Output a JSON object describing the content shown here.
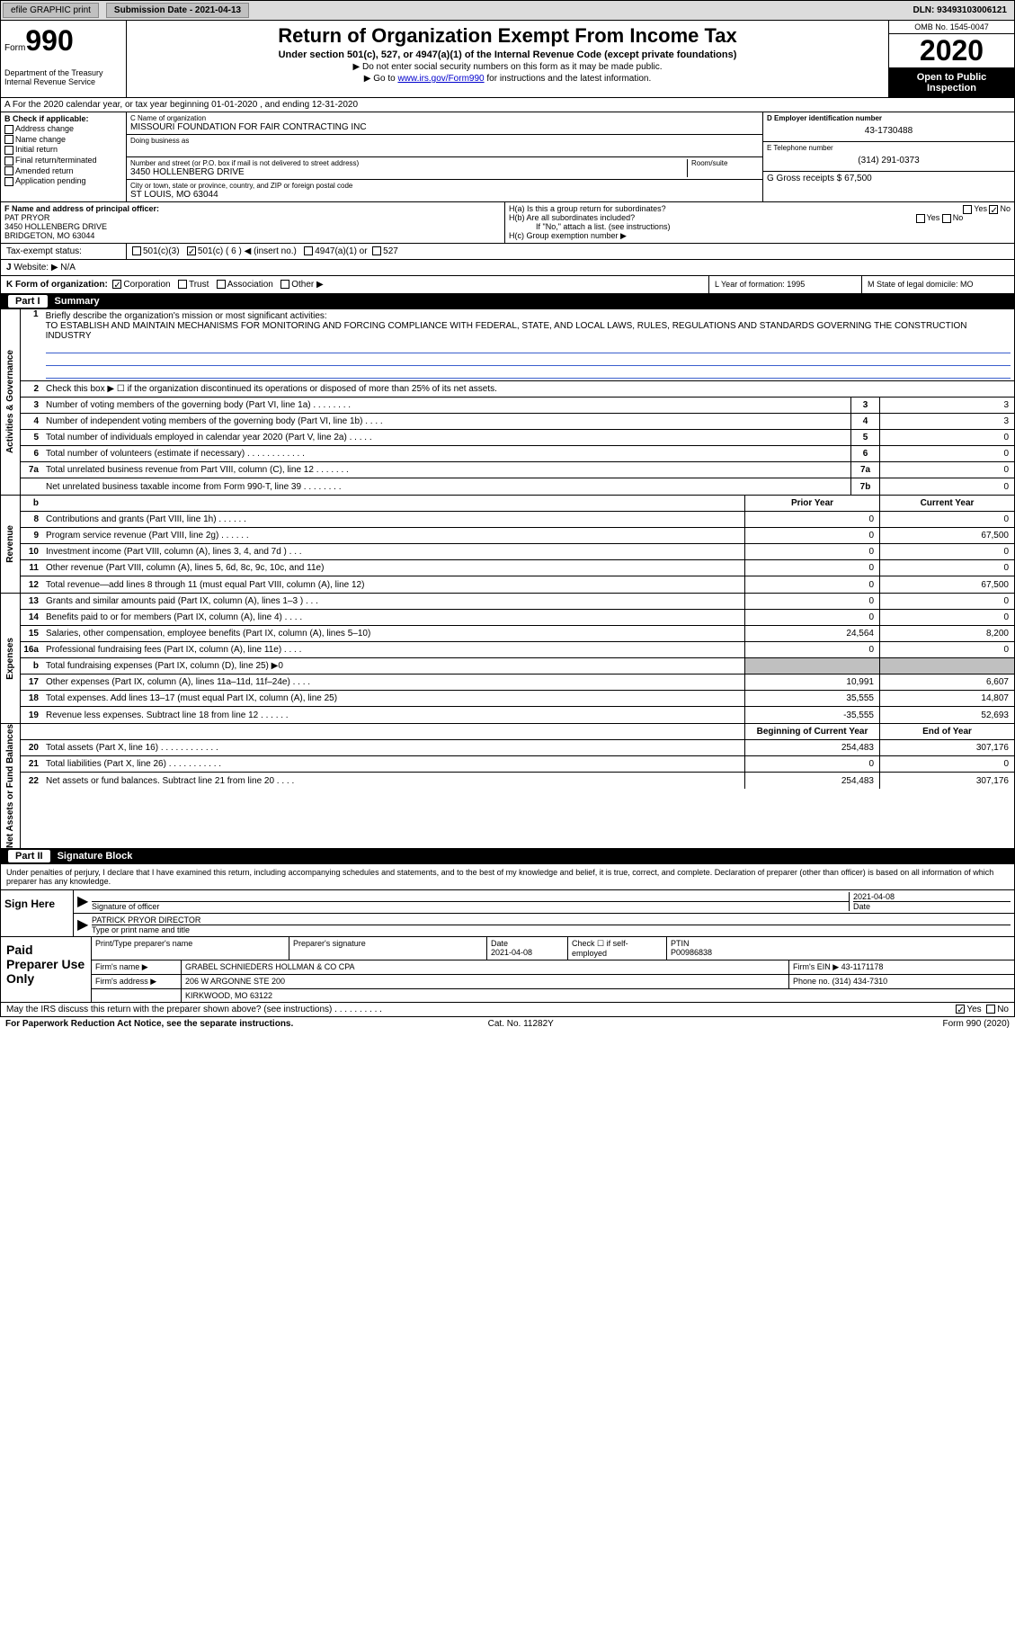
{
  "topbar": {
    "efile": "efile GRAPHIC print",
    "subdate_label": "Submission Date - 2021-04-13",
    "dln": "DLN: 93493103006121"
  },
  "header": {
    "form_label": "Form",
    "form_no": "990",
    "dept": "Department of the Treasury\nInternal Revenue Service",
    "title": "Return of Organization Exempt From Income Tax",
    "sub1": "Under section 501(c), 527, or 4947(a)(1) of the Internal Revenue Code (except private foundations)",
    "sub2": "▶ Do not enter social security numbers on this form as it may be made public.",
    "sub3_pre": "▶ Go to ",
    "sub3_link": "www.irs.gov/Form990",
    "sub3_post": " for instructions and the latest information.",
    "omb": "OMB No. 1545-0047",
    "year": "2020",
    "open": "Open to Public Inspection"
  },
  "row_a": "A For the 2020 calendar year, or tax year beginning 01-01-2020   , and ending 12-31-2020",
  "section_b": {
    "label": "B Check if applicable:",
    "items": [
      "Address change",
      "Name change",
      "Initial return",
      "Final return/terminated",
      "Amended return",
      "Application pending"
    ]
  },
  "section_c": {
    "name_lbl": "C Name of organization",
    "name": "MISSOURI FOUNDATION FOR FAIR CONTRACTING INC",
    "dba_lbl": "Doing business as",
    "addr_lbl": "Number and street (or P.O. box if mail is not delivered to street address)",
    "room_lbl": "Room/suite",
    "addr": "3450 HOLLENBERG DRIVE",
    "city_lbl": "City or town, state or province, country, and ZIP or foreign postal code",
    "city": "ST LOUIS, MO  63044"
  },
  "section_d": {
    "lbl": "D Employer identification number",
    "val": "43-1730488"
  },
  "section_e": {
    "lbl": "E Telephone number",
    "val": "(314) 291-0373"
  },
  "section_g": {
    "lbl": "G Gross receipts $ 67,500"
  },
  "section_f": {
    "lbl": "F  Name and address of principal officer:",
    "name": "PAT PRYOR",
    "addr": "3450 HOLLENBERG DRIVE\nBRIDGETON, MO  63044"
  },
  "section_h": {
    "a": "H(a)  Is this a group return for subordinates?",
    "a_ans_yes": "Yes",
    "a_ans_no": "No",
    "b": "H(b)  Are all subordinates included?",
    "b_note": "If \"No,\" attach a list. (see instructions)",
    "c": "H(c)  Group exemption number ▶"
  },
  "tax_status": {
    "lbl": "Tax-exempt status:",
    "o1": "501(c)(3)",
    "o2": "501(c) ( 6 ) ◀ (insert no.)",
    "o3": "4947(a)(1) or",
    "o4": "527"
  },
  "row_j": "Website: ▶  N/A",
  "row_k": {
    "k": "K Form of organization:",
    "corp": "Corporation",
    "trust": "Trust",
    "assoc": "Association",
    "other": "Other ▶",
    "l": "L Year of formation: 1995",
    "m": "M State of legal domicile: MO"
  },
  "part1": {
    "label": "Part I",
    "title": "Summary"
  },
  "summary": {
    "groups": [
      {
        "vlabel": "Activities & Governance",
        "rows": [
          {
            "num": "1",
            "type": "brief",
            "desc": "Briefly describe the organization's mission or most significant activities:",
            "text": "TO ESTABLISH AND MAINTAIN MECHANISMS FOR MONITORING AND FORCING COMPLIANCE WITH FEDERAL, STATE, AND LOCAL LAWS, RULES, REGULATIONS AND STANDARDS GOVERNING THE CONSTRUCTION INDUSTRY"
          },
          {
            "num": "2",
            "type": "text",
            "desc": "Check this box ▶ ☐  if the organization discontinued its operations or disposed of more than 25% of its net assets."
          },
          {
            "num": "3",
            "type": "box",
            "desc": "Number of voting members of the governing body (Part VI, line 1a)  .   .   .   .   .   .   .   .",
            "box": "3",
            "val": "3"
          },
          {
            "num": "4",
            "type": "box",
            "desc": "Number of independent voting members of the governing body (Part VI, line 1b)  .   .   .   .",
            "box": "4",
            "val": "3"
          },
          {
            "num": "5",
            "type": "box",
            "desc": "Total number of individuals employed in calendar year 2020 (Part V, line 2a)  .   .   .   .   .",
            "box": "5",
            "val": "0"
          },
          {
            "num": "6",
            "type": "box",
            "desc": "Total number of volunteers (estimate if necessary)   .   .   .   .   .   .   .   .   .   .   .   .",
            "box": "6",
            "val": "0"
          },
          {
            "num": "7a",
            "type": "box",
            "desc": "Total unrelated business revenue from Part VIII, column (C), line 12  .   .   .   .   .   .   .",
            "box": "7a",
            "val": "0"
          },
          {
            "num": "",
            "type": "box",
            "desc": "Net unrelated business taxable income from Form 990-T, line 39   .   .   .   .   .   .   .   .",
            "box": "7b",
            "val": "0"
          }
        ]
      },
      {
        "vlabel": "Revenue",
        "header": {
          "py": "Prior Year",
          "cy": "Current Year"
        },
        "rows": [
          {
            "num": "b",
            "type": "hdr"
          },
          {
            "num": "8",
            "type": "pycy",
            "desc": "Contributions and grants (Part VIII, line 1h)   .   .   .   .   .   .",
            "py": "0",
            "cy": "0"
          },
          {
            "num": "9",
            "type": "pycy",
            "desc": "Program service revenue (Part VIII, line 2g)   .   .   .   .   .   .",
            "py": "0",
            "cy": "67,500"
          },
          {
            "num": "10",
            "type": "pycy",
            "desc": "Investment income (Part VIII, column (A), lines 3, 4, and 7d )   .   .   .",
            "py": "0",
            "cy": "0"
          },
          {
            "num": "11",
            "type": "pycy",
            "desc": "Other revenue (Part VIII, column (A), lines 5, 6d, 8c, 9c, 10c, and 11e)",
            "py": "0",
            "cy": "0"
          },
          {
            "num": "12",
            "type": "pycy",
            "desc": "Total revenue—add lines 8 through 11 (must equal Part VIII, column (A), line 12)",
            "py": "0",
            "cy": "67,500"
          }
        ]
      },
      {
        "vlabel": "Expenses",
        "rows": [
          {
            "num": "13",
            "type": "pycy",
            "desc": "Grants and similar amounts paid (Part IX, column (A), lines 1–3 )  .   .   .",
            "py": "0",
            "cy": "0"
          },
          {
            "num": "14",
            "type": "pycy",
            "desc": "Benefits paid to or for members (Part IX, column (A), line 4)  .   .   .   .",
            "py": "0",
            "cy": "0"
          },
          {
            "num": "15",
            "type": "pycy",
            "desc": "Salaries, other compensation, employee benefits (Part IX, column (A), lines 5–10)",
            "py": "24,564",
            "cy": "8,200"
          },
          {
            "num": "16a",
            "type": "pycy",
            "desc": "Professional fundraising fees (Part IX, column (A), line 11e)  .   .   .   .",
            "py": "0",
            "cy": "0"
          },
          {
            "num": "b",
            "type": "grey",
            "desc": "Total fundraising expenses (Part IX, column (D), line 25) ▶0"
          },
          {
            "num": "17",
            "type": "pycy",
            "desc": "Other expenses (Part IX, column (A), lines 11a–11d, 11f–24e)  .   .   .   .",
            "py": "10,991",
            "cy": "6,607"
          },
          {
            "num": "18",
            "type": "pycy",
            "desc": "Total expenses. Add lines 13–17 (must equal Part IX, column (A), line 25)",
            "py": "35,555",
            "cy": "14,807"
          },
          {
            "num": "19",
            "type": "pycy",
            "desc": "Revenue less expenses. Subtract line 18 from line 12  .   .   .   .   .   .",
            "py": "-35,555",
            "cy": "52,693"
          }
        ]
      },
      {
        "vlabel": "Net Assets or Fund Balances",
        "header": {
          "py": "Beginning of Current Year",
          "cy": "End of Year"
        },
        "rows": [
          {
            "num": "",
            "type": "hdr"
          },
          {
            "num": "20",
            "type": "pycy",
            "desc": "Total assets (Part X, line 16)  .   .   .   .   .   .   .   .   .   .   .   .",
            "py": "254,483",
            "cy": "307,176"
          },
          {
            "num": "21",
            "type": "pycy",
            "desc": "Total liabilities (Part X, line 26)  .   .   .   .   .   .   .   .   .   .   .",
            "py": "0",
            "cy": "0"
          },
          {
            "num": "22",
            "type": "pycy",
            "desc": "Net assets or fund balances. Subtract line 21 from line 20   .   .   .   .",
            "py": "254,483",
            "cy": "307,176"
          }
        ]
      }
    ]
  },
  "part2": {
    "label": "Part II",
    "title": "Signature Block"
  },
  "sig_intro": "Under penalties of perjury, I declare that I have examined this return, including accompanying schedules and statements, and to the best of my knowledge and belief, it is true, correct, and complete. Declaration of preparer (other than officer) is based on all information of which preparer has any knowledge.",
  "sign_here": {
    "label": "Sign Here",
    "sig_lbl": "Signature of officer",
    "date": "2021-04-08",
    "date_lbl": "Date",
    "name": "PATRICK PRYOR  DIRECTOR",
    "name_lbl": "Type or print name and title"
  },
  "preparer": {
    "label": "Paid Preparer Use Only",
    "r1": {
      "c1": "Print/Type preparer's name",
      "c2": "Preparer's signature",
      "c3": "Date\n2021-04-08",
      "c4": "Check ☐ if self-employed",
      "c5": "PTIN\nP00986838"
    },
    "r2": {
      "lbl": "Firm's name    ▶",
      "val": "GRABEL SCHNIEDERS HOLLMAN & CO CPA",
      "ein": "Firm's EIN ▶ 43-1171178"
    },
    "r3": {
      "lbl": "Firm's address ▶",
      "val": "206 W ARGONNE STE 200",
      "phone": "Phone no. (314) 434-7310"
    },
    "r4": {
      "city": "KIRKWOOD, MO  63122"
    }
  },
  "discuss": {
    "q": "May the IRS discuss this return with the preparer shown above? (see instructions)   .   .   .   .   .   .   .   .   .   .",
    "yes": "Yes",
    "no": "No"
  },
  "footer": {
    "l": "For Paperwork Reduction Act Notice, see the separate instructions.",
    "c": "Cat. No. 11282Y",
    "r": "Form 990 (2020)"
  }
}
